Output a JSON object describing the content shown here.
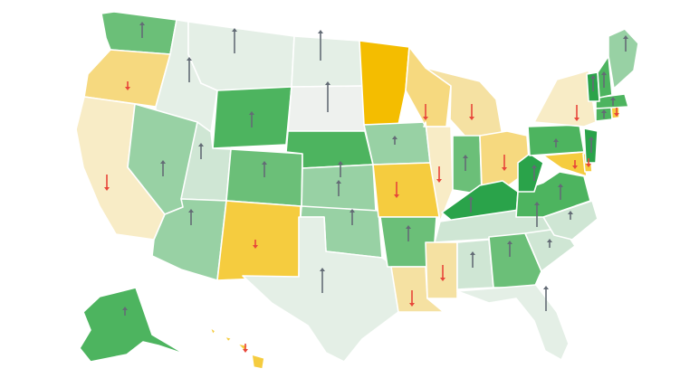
{
  "map": {
    "palette": {
      "g5": "#2aa34a",
      "g4": "#4db45f",
      "g3": "#6bbf78",
      "g2": "#98d1a4",
      "g1": "#cfe6d4",
      "g0": "#e4efe6",
      "n0": "#eef1ee",
      "y1": "#f8ecc6",
      "y2": "#f5e1a2",
      "y3": "#f6d97f",
      "y4": "#f5cc3f",
      "y5": "#f4bd00"
    },
    "arrow_colors": {
      "up": "#636b75",
      "down": "#e8463a"
    },
    "states": [
      {
        "id": "WA",
        "fill": "g3",
        "arrow": "up",
        "size": 2
      },
      {
        "id": "OR",
        "fill": "y3",
        "arrow": "down",
        "size": 1
      },
      {
        "id": "CA",
        "fill": "y1",
        "arrow": "down",
        "size": 2
      },
      {
        "id": "ID",
        "fill": "g0",
        "arrow": "up",
        "size": 3
      },
      {
        "id": "NV",
        "fill": "g2",
        "arrow": "up",
        "size": 2
      },
      {
        "id": "MT",
        "fill": "g0",
        "arrow": "up",
        "size": 3
      },
      {
        "id": "WY",
        "fill": "g4",
        "arrow": "up",
        "size": 2
      },
      {
        "id": "UT",
        "fill": "g1",
        "arrow": "up",
        "size": 2
      },
      {
        "id": "AZ",
        "fill": "g2",
        "arrow": "up",
        "size": 2
      },
      {
        "id": "CO",
        "fill": "g3",
        "arrow": "up",
        "size": 2
      },
      {
        "id": "NM",
        "fill": "y4",
        "arrow": "down",
        "size": 1
      },
      {
        "id": "ND",
        "fill": "g0",
        "arrow": "up",
        "size": 4
      },
      {
        "id": "SD",
        "fill": "n0",
        "arrow": "up",
        "size": 4
      },
      {
        "id": "NE",
        "fill": "g4",
        "arrow": "up",
        "size": 2
      },
      {
        "id": "KS",
        "fill": "g2",
        "arrow": "up",
        "size": 2
      },
      {
        "id": "OK",
        "fill": "g2",
        "arrow": "up",
        "size": 2
      },
      {
        "id": "TX",
        "fill": "g0",
        "arrow": "up",
        "size": 3
      },
      {
        "id": "MN",
        "fill": "y5",
        "arrow": "none",
        "size": 0
      },
      {
        "id": "IA",
        "fill": "g2",
        "arrow": "up",
        "size": 1
      },
      {
        "id": "MO",
        "fill": "y4",
        "arrow": "down",
        "size": 2
      },
      {
        "id": "AR",
        "fill": "g3",
        "arrow": "up",
        "size": 2
      },
      {
        "id": "LA",
        "fill": "y2",
        "arrow": "down",
        "size": 2
      },
      {
        "id": "WI",
        "fill": "y3",
        "arrow": "down",
        "size": 2
      },
      {
        "id": "IL",
        "fill": "y1",
        "arrow": "down",
        "size": 2
      },
      {
        "id": "MI",
        "fill": "y2",
        "arrow": "down",
        "size": 2
      },
      {
        "id": "IN",
        "fill": "g3",
        "arrow": "up",
        "size": 2
      },
      {
        "id": "OH",
        "fill": "y3",
        "arrow": "down",
        "size": 2
      },
      {
        "id": "KY",
        "fill": "g5",
        "arrow": "up",
        "size": 2
      },
      {
        "id": "TN",
        "fill": "g1",
        "arrow": "up",
        "size": 3
      },
      {
        "id": "MS",
        "fill": "y2",
        "arrow": "down",
        "size": 2
      },
      {
        "id": "AL",
        "fill": "g1",
        "arrow": "up",
        "size": 2
      },
      {
        "id": "GA",
        "fill": "g3",
        "arrow": "up",
        "size": 2
      },
      {
        "id": "FL",
        "fill": "g0",
        "arrow": "up",
        "size": 3
      },
      {
        "id": "SC",
        "fill": "g1",
        "arrow": "up",
        "size": 1
      },
      {
        "id": "NC",
        "fill": "g1",
        "arrow": "up",
        "size": 1
      },
      {
        "id": "VA",
        "fill": "g4",
        "arrow": "up",
        "size": 2
      },
      {
        "id": "WV",
        "fill": "g5",
        "arrow": "up",
        "size": 2
      },
      {
        "id": "PA",
        "fill": "g4",
        "arrow": "up",
        "size": 1
      },
      {
        "id": "NY",
        "fill": "y1",
        "arrow": "down",
        "size": 2
      },
      {
        "id": "MD",
        "fill": "y4",
        "arrow": "down",
        "size": 1
      },
      {
        "id": "DE",
        "fill": "y4",
        "arrow": "down",
        "size": 1
      },
      {
        "id": "NJ",
        "fill": "g5",
        "arrow": "up",
        "size": 2
      },
      {
        "id": "CT",
        "fill": "g4",
        "arrow": "up",
        "size": 1
      },
      {
        "id": "RI",
        "fill": "y4",
        "arrow": "down",
        "size": 1
      },
      {
        "id": "MA",
        "fill": "g4",
        "arrow": "up",
        "size": 1
      },
      {
        "id": "VT",
        "fill": "g5",
        "arrow": "up",
        "size": 2
      },
      {
        "id": "NH",
        "fill": "g4",
        "arrow": "up",
        "size": 2
      },
      {
        "id": "ME",
        "fill": "g2",
        "arrow": "up",
        "size": 2
      },
      {
        "id": "AK",
        "fill": "g4",
        "arrow": "up",
        "size": 1
      },
      {
        "id": "HI",
        "fill": "y4",
        "arrow": "down",
        "size": 1
      }
    ]
  }
}
